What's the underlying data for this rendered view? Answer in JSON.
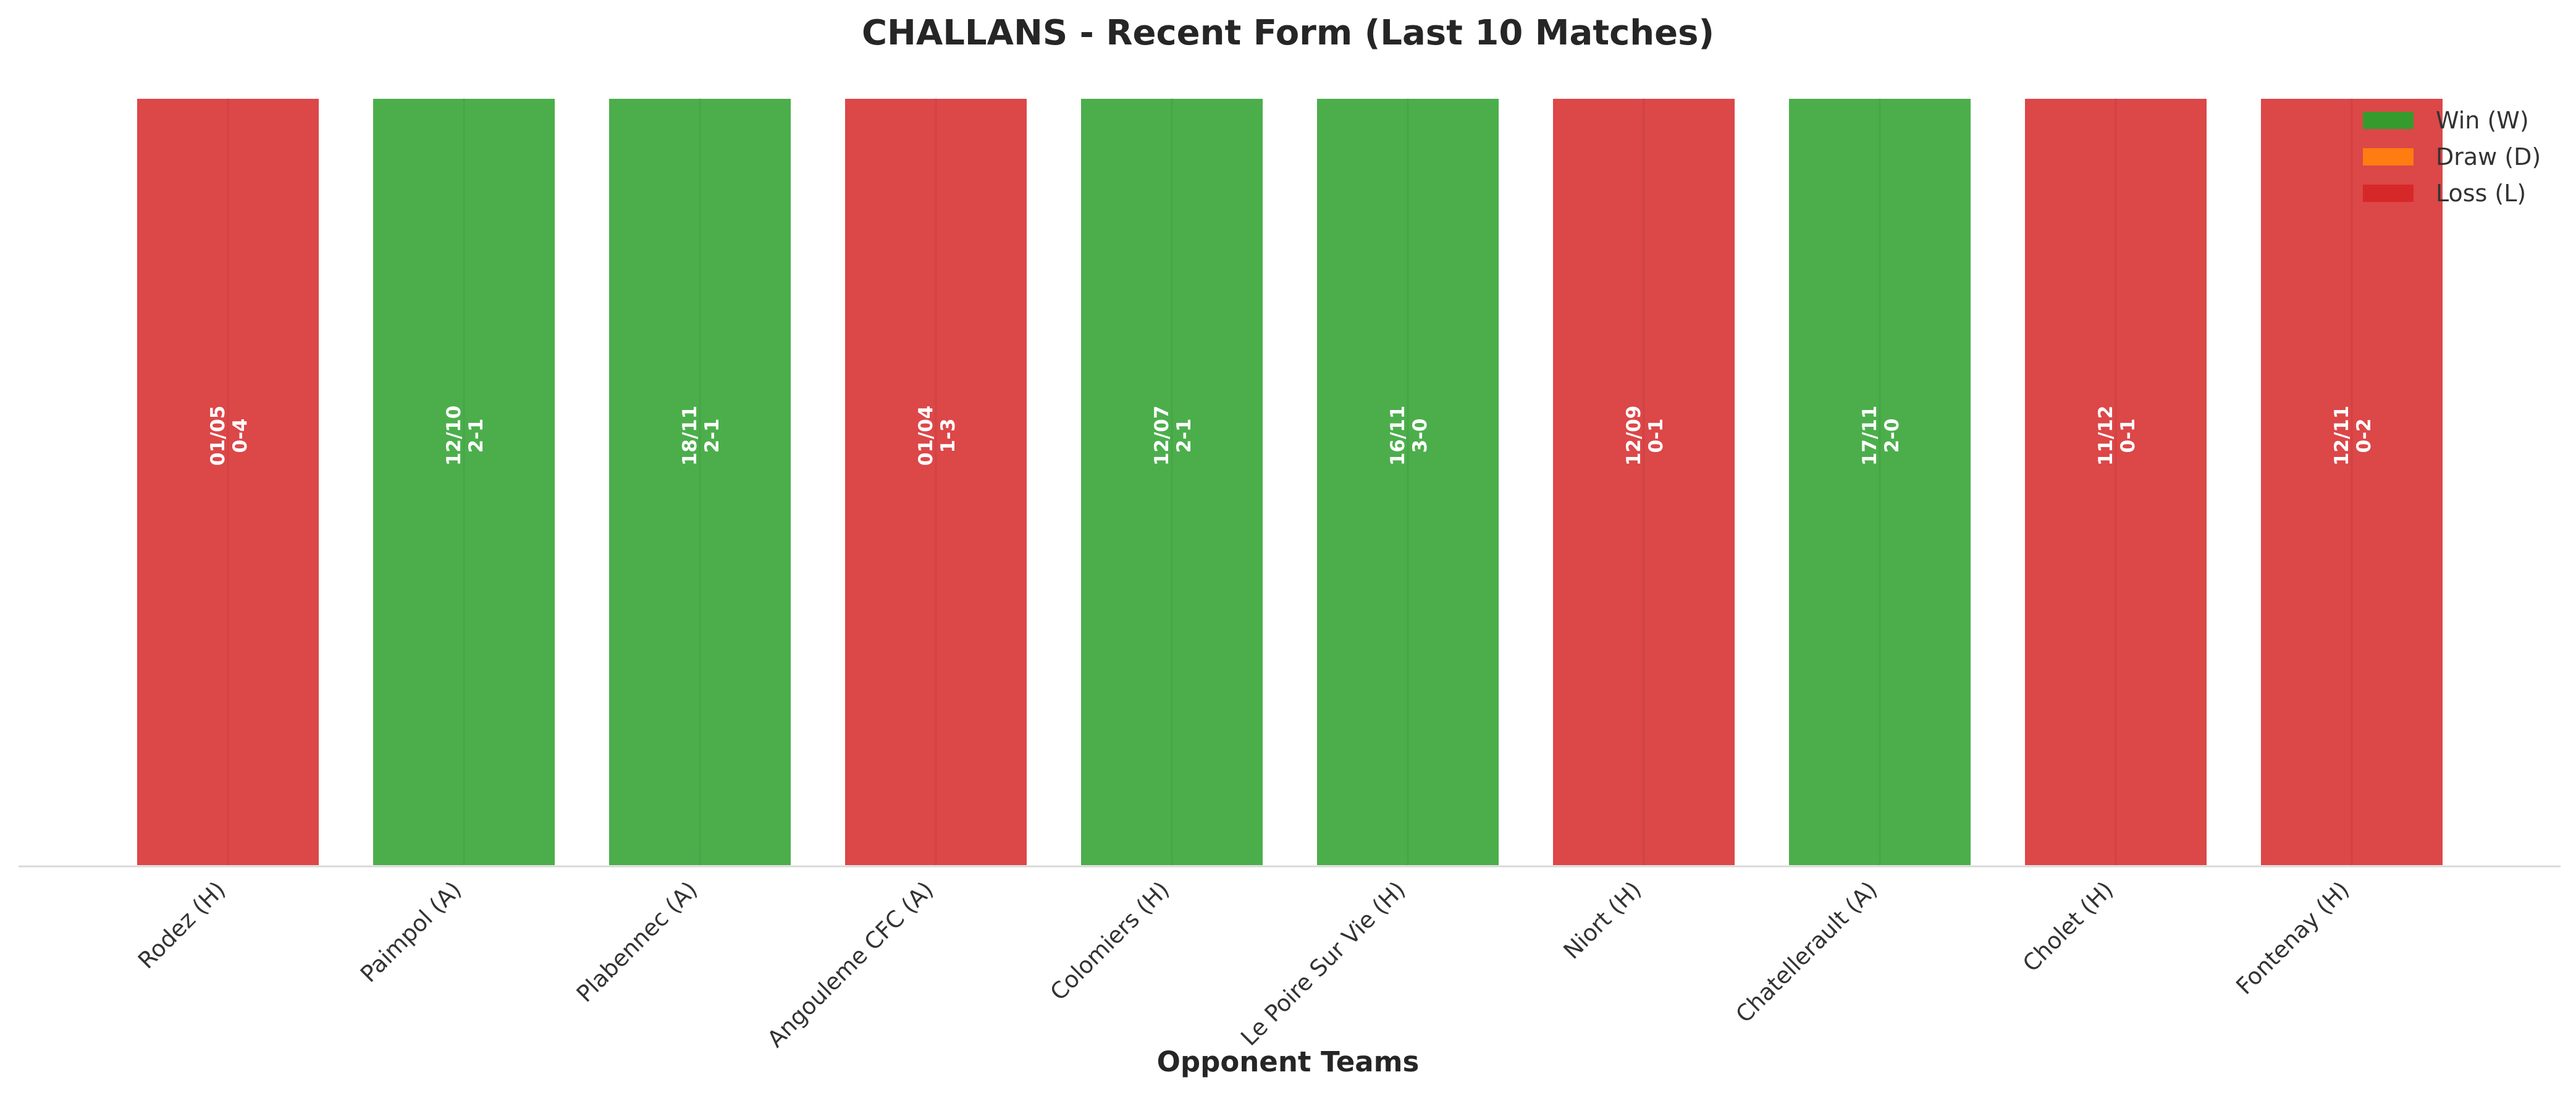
{
  "chart_data": {
    "type": "bar",
    "title": "CHALLANS - Recent Form (Last 10 Matches)",
    "xlabel": "Opponent Teams",
    "ylabel": "",
    "categories": [
      "Rodez (H)",
      "Paimpol (A)",
      "Plabennec (A)",
      "Angouleme CFC (A)",
      "Colomiers (H)",
      "Le Poire Sur Vie (H)",
      "Niort (H)",
      "Chatellerault (A)",
      "Cholet (H)",
      "Fontenay (H)"
    ],
    "results": [
      "L",
      "W",
      "W",
      "L",
      "W",
      "W",
      "L",
      "W",
      "L",
      "L"
    ],
    "dates": [
      "01/05",
      "12/10",
      "18/11",
      "01/04",
      "12/07",
      "16/11",
      "12/09",
      "17/11",
      "11/12",
      "12/11"
    ],
    "scores": [
      "0-4",
      "2-1",
      "2-1",
      "1-3",
      "2-1",
      "3-0",
      "0-1",
      "2-0",
      "0-1",
      "0-2"
    ],
    "values": [
      1,
      1,
      1,
      1,
      1,
      1,
      1,
      1,
      1,
      1
    ],
    "ylim": [
      0,
      1
    ],
    "legend": {
      "placement": "top-right",
      "entries": [
        {
          "key": "W",
          "label": "Win (W)",
          "color": "#2ca02c"
        },
        {
          "key": "D",
          "label": "Draw (D)",
          "color": "#ff7f0e"
        },
        {
          "key": "L",
          "label": "Loss (L)",
          "color": "#d62728"
        }
      ]
    },
    "colors": {
      "W": "#2ca02c",
      "D": "#ff7f0e",
      "L": "#d62728"
    }
  }
}
